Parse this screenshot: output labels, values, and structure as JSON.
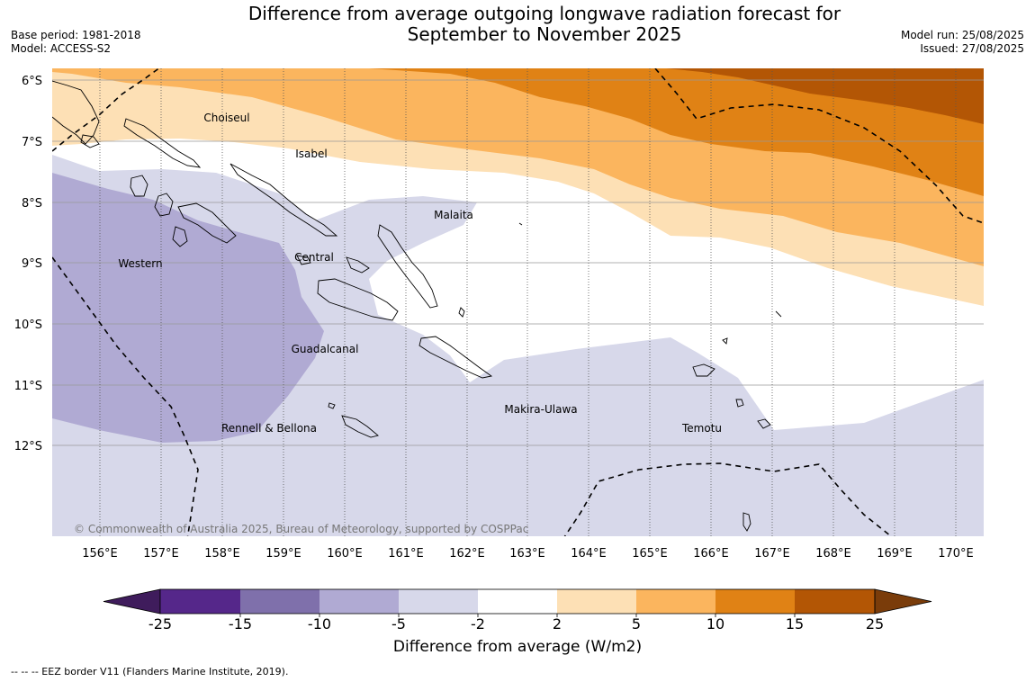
{
  "title": {
    "line1": "Difference from average outgoing longwave radiation forecast for",
    "line2": "September to November 2025"
  },
  "meta": {
    "base_period": "Base period: 1981-2018",
    "model": "Model: ACCESS-S2",
    "model_run": "Model run: 25/08/2025",
    "issued": "Issued: 27/08/2025"
  },
  "map": {
    "lat_labels": [
      "6°S",
      "7°S",
      "8°S",
      "9°S",
      "10°S",
      "11°S",
      "12°S"
    ],
    "lon_labels": [
      "156°E",
      "157°E",
      "158°E",
      "159°E",
      "160°E",
      "161°E",
      "162°E",
      "163°E",
      "164°E",
      "165°E",
      "166°E",
      "167°E",
      "168°E",
      "169°E",
      "170°E"
    ],
    "region_labels": [
      "Choiseul",
      "Isabel",
      "Malaita",
      "Western",
      "Central",
      "Guadalcanal",
      "Rennell & Bellona",
      "Makira-Ulawa",
      "Temotu"
    ],
    "copyright": "© Commonwealth of Australia 2025, Bureau of Meteorology, supported by COSPPac"
  },
  "colorbar": {
    "ticks": [
      "-25",
      "-15",
      "-10",
      "-5",
      "-2",
      "2",
      "5",
      "10",
      "15",
      "25"
    ],
    "colors": [
      "#3f1c5c",
      "#55278a",
      "#7f70ab",
      "#b0aad3",
      "#d7d8ea",
      "#ffffff",
      "#fde0b5",
      "#fbb55e",
      "#e08215",
      "#b35605",
      "#7a3c0a"
    ],
    "label": "Difference from average (W/m2)"
  },
  "footer": "--  --  -- EEZ border V11 (Flanders Marine Institute, 2019)."
}
